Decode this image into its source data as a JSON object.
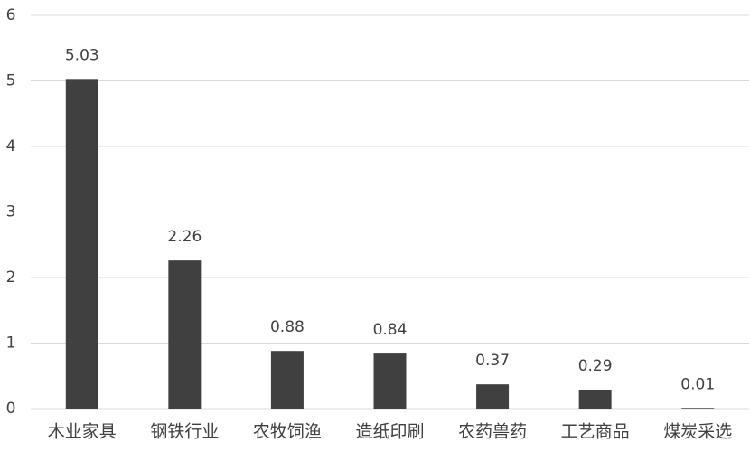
{
  "chart_data": {
    "type": "bar",
    "categories": [
      "木业家具",
      "钢铁行业",
      "农牧饲渔",
      "造纸印刷",
      "农药兽药",
      "工艺商品",
      "煤炭采选"
    ],
    "values": [
      5.03,
      2.26,
      0.88,
      0.84,
      0.37,
      0.29,
      0.01
    ],
    "color": "#404040",
    "ylim": [
      0,
      6
    ],
    "yticks": [
      0,
      1,
      2,
      3,
      4,
      5,
      6
    ],
    "grid": true
  }
}
